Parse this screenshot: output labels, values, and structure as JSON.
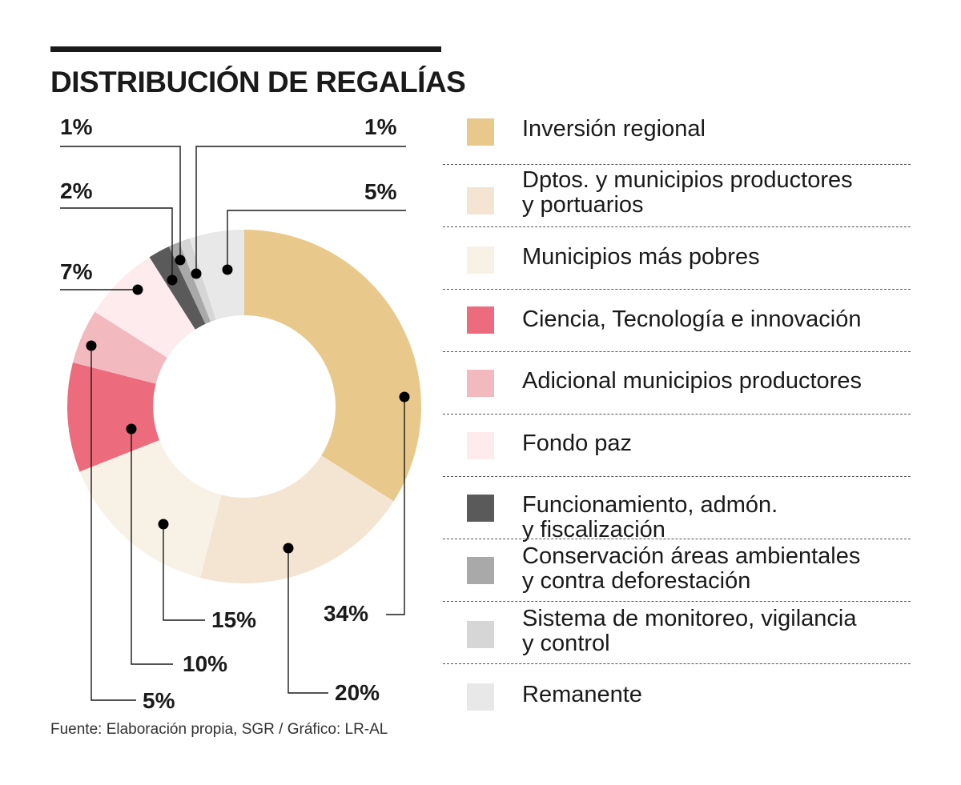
{
  "title": "DISTRIBUCIÓN DE REGALÍAS",
  "source": "Fuente: Elaboración propia, SGR / Gráfico: LR-AL",
  "chart_data": {
    "type": "pie",
    "subtype": "donut",
    "title": "DISTRIBUCIÓN DE REGALÍAS",
    "slices": [
      {
        "name": "Inversión regional",
        "value": 34,
        "label": "34%",
        "color": "#e8c98b"
      },
      {
        "name": "Dptos. y municipios productores\ny portuarios",
        "value": 20,
        "label": "20%",
        "color": "#f3e5d1"
      },
      {
        "name": "Municipios más pobres",
        "value": 15,
        "label": "15%",
        "color": "#f8f1e6"
      },
      {
        "name": "Ciencia, Tecnología e innovación",
        "value": 10,
        "label": "10%",
        "color": "#ec6b7d"
      },
      {
        "name": "Adicional municipios productores",
        "value": 5,
        "label": "5%",
        "color": "#f2b9bf"
      },
      {
        "name": "Fondo paz",
        "value": 7,
        "label": "7%",
        "color": "#fdebed"
      },
      {
        "name": "Funcionamiento, admón.\ny fiscalización",
        "value": 2,
        "label": "2%",
        "color": "#5a5a5a"
      },
      {
        "name": "Conservación áreas ambientales\ny contra deforestación",
        "value": 1,
        "label": "1%",
        "color": "#a9a9a9"
      },
      {
        "name": "Sistema de monitoreo, vigilancia\ny control",
        "value": 1,
        "label": "1%",
        "color": "#d6d6d6"
      },
      {
        "name": "Remanente",
        "value": 5,
        "label": "5%",
        "color": "#e8e8e8"
      }
    ]
  }
}
